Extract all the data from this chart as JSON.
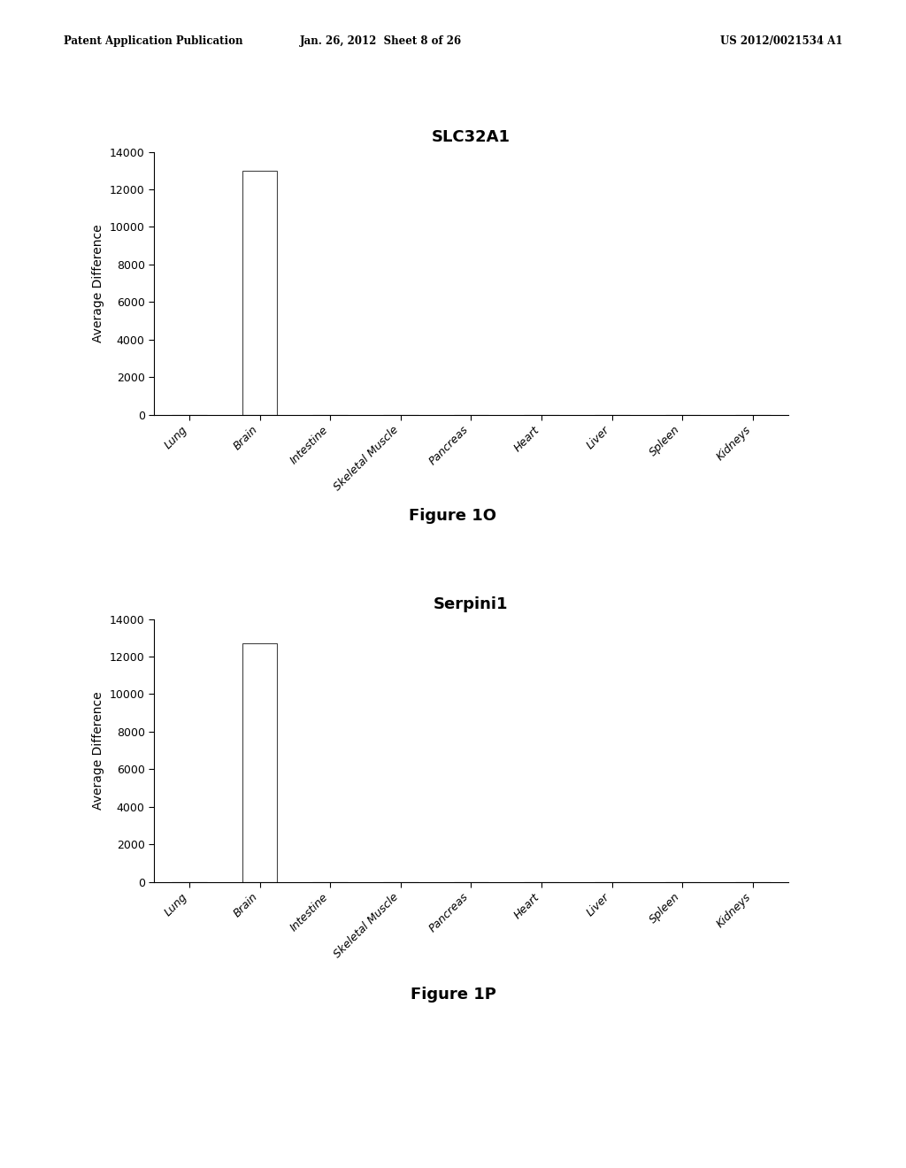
{
  "chart1": {
    "title": "SLC32A1",
    "categories": [
      "Lung",
      "Brain",
      "Intestine",
      "Skeletal Muscle",
      "Pancreas",
      "Heart",
      "Liver",
      "Spleen",
      "Kidneys"
    ],
    "values": [
      0,
      13000,
      0,
      0,
      0,
      0,
      0,
      0,
      0
    ],
    "ylabel": "Average Difference",
    "ylim": [
      0,
      14000
    ],
    "yticks": [
      0,
      2000,
      4000,
      6000,
      8000,
      10000,
      12000,
      14000
    ],
    "figure_label": "Figure 1O"
  },
  "chart2": {
    "title": "Serpini1",
    "categories": [
      "Lung",
      "Brain",
      "Intestine",
      "Skeletal Muscle",
      "Pancreas",
      "Heart",
      "Liver",
      "Spleen",
      "Kidneys"
    ],
    "values": [
      0,
      12700,
      0,
      0,
      0,
      0,
      0,
      0,
      0
    ],
    "ylabel": "Average Difference",
    "ylim": [
      0,
      14000
    ],
    "yticks": [
      0,
      2000,
      4000,
      6000,
      8000,
      10000,
      12000,
      14000
    ],
    "figure_label": "Figure 1P"
  },
  "header_left": "Patent Application Publication",
  "header_center": "Jan. 26, 2012  Sheet 8 of 26",
  "header_right": "US 2012/0021534 A1",
  "bar_color": "#ffffff",
  "bar_edgecolor": "#444444",
  "background_color": "#ffffff",
  "bar_width": 0.5,
  "title_fontsize": 13,
  "axis_fontsize": 10,
  "tick_fontsize": 9,
  "label_fontsize": 13
}
